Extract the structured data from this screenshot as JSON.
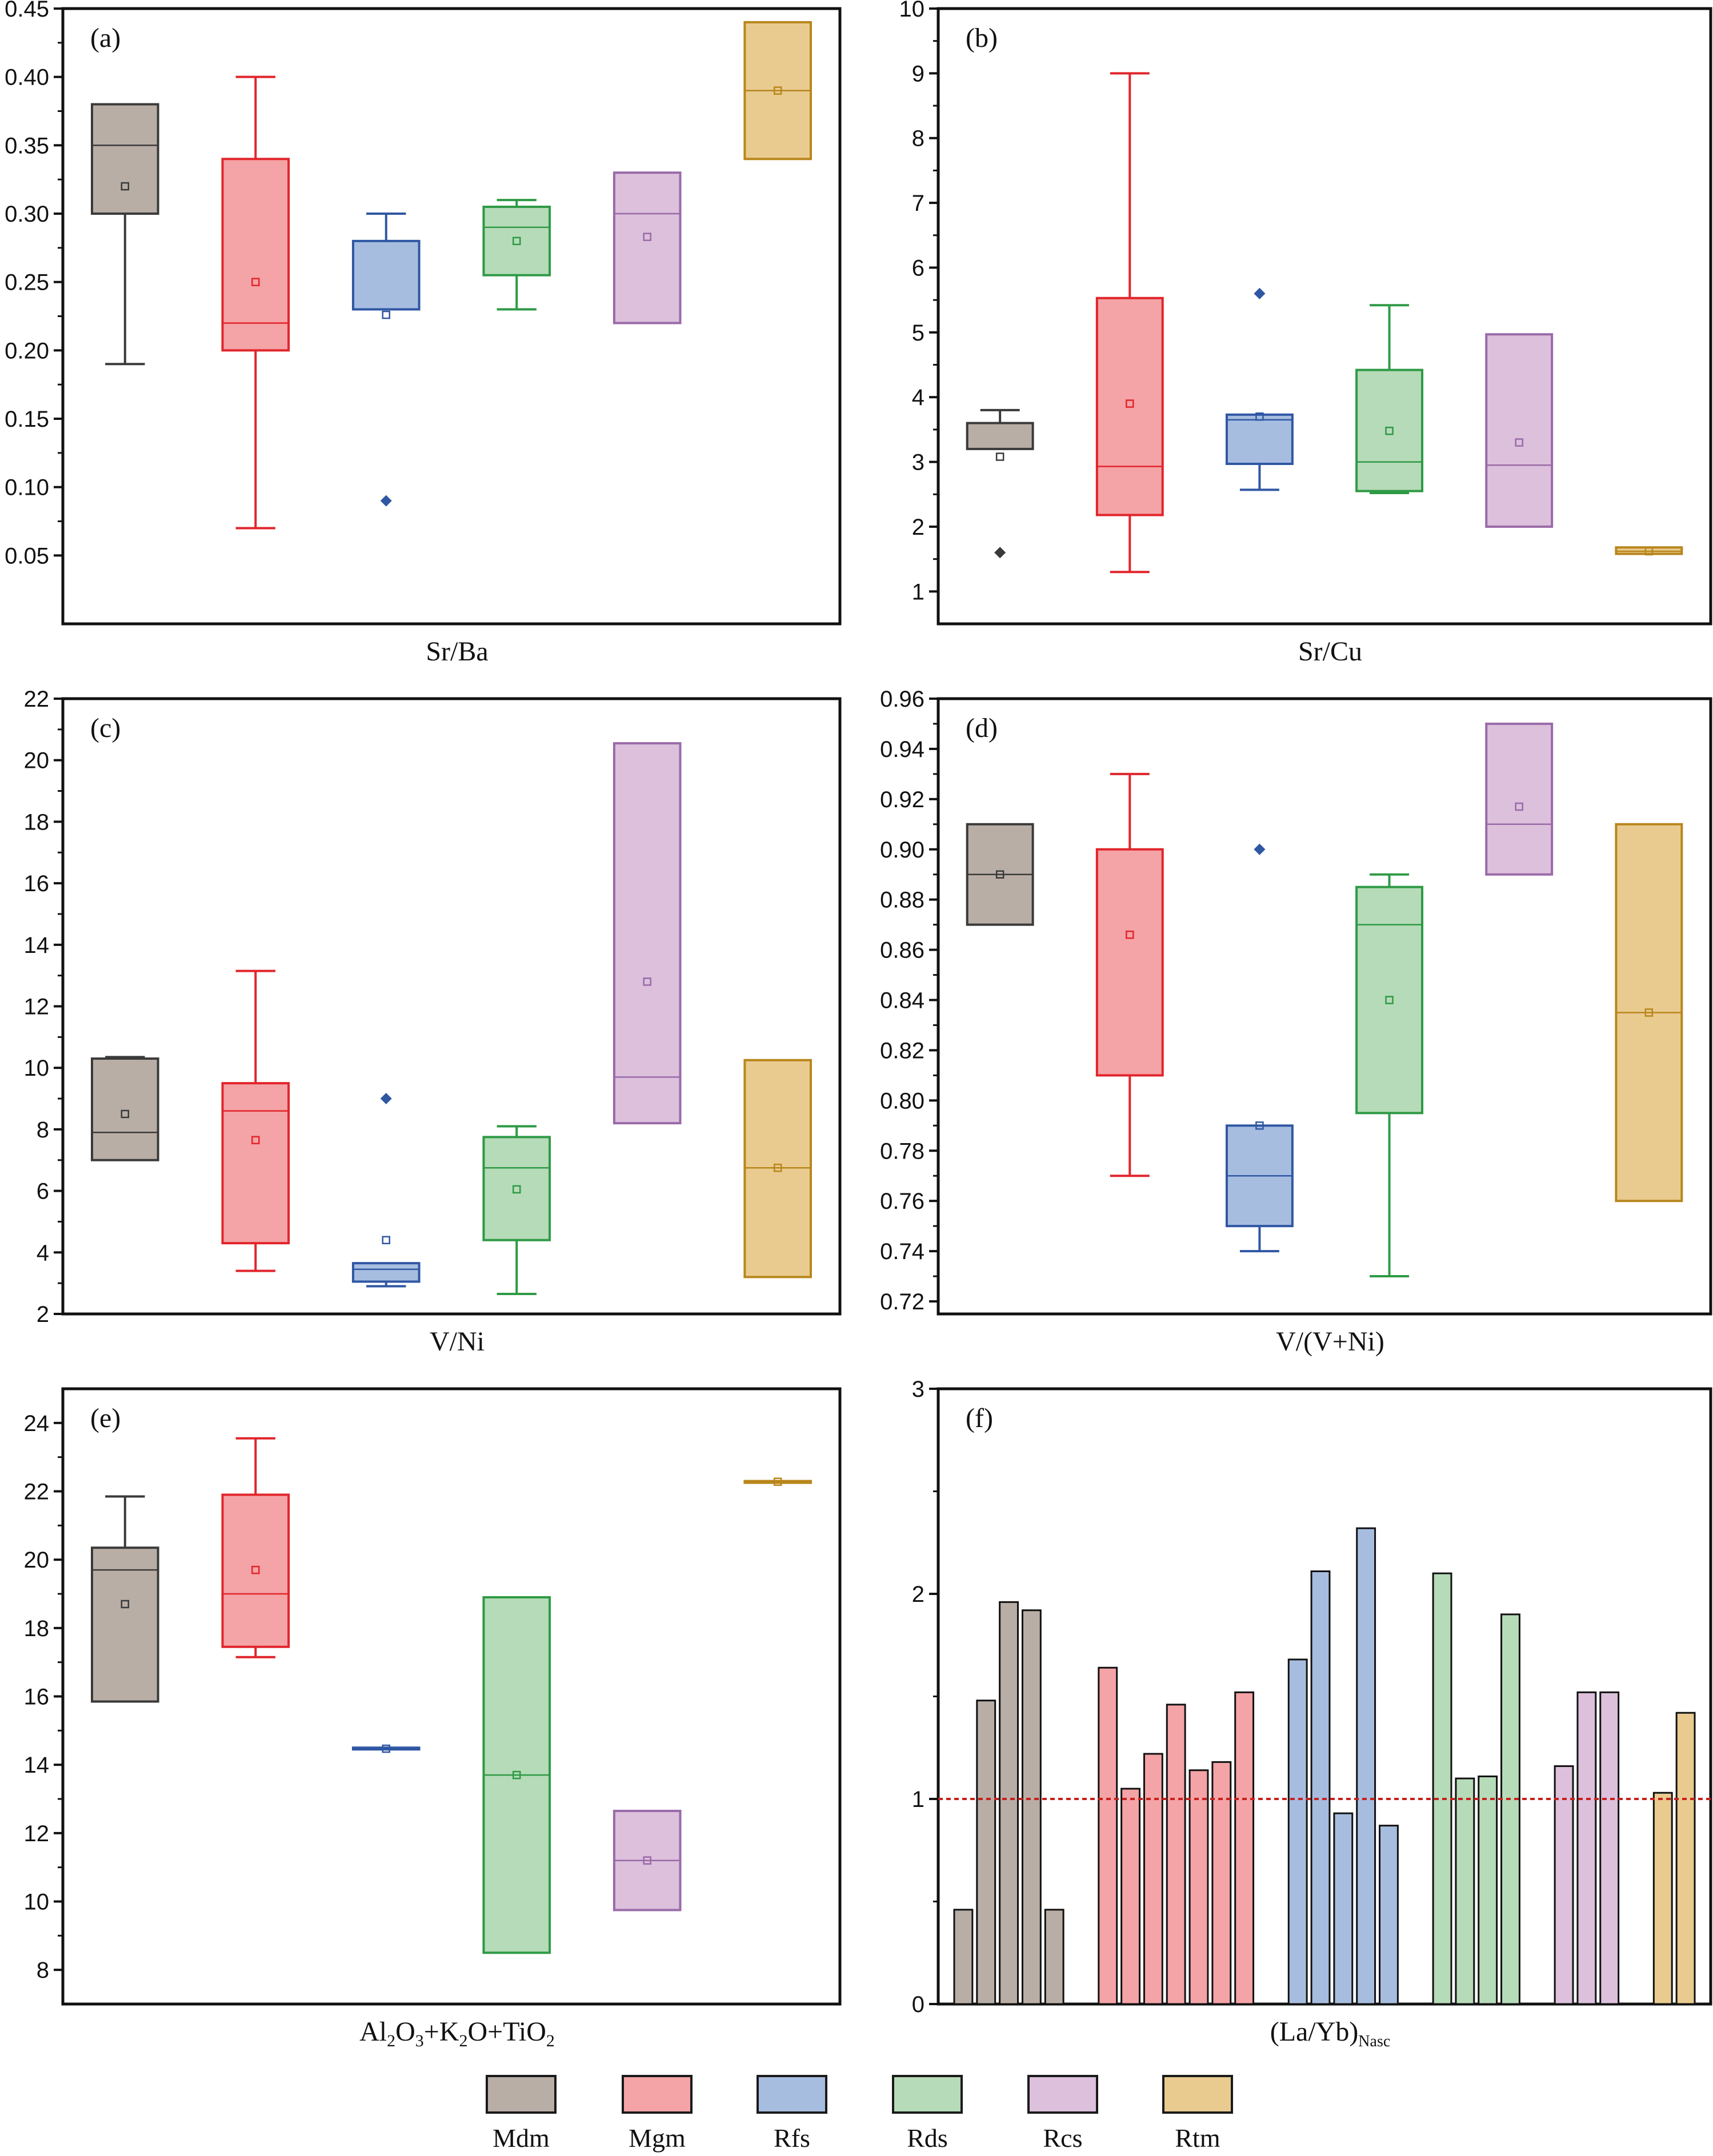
{
  "legend": [
    {
      "label": "Mdm",
      "fill": "#b9aea6",
      "stroke": "#3a3a3a"
    },
    {
      "label": "Mgm",
      "fill": "#f4a3a6",
      "stroke": "#e1252b"
    },
    {
      "label": "Rfs",
      "fill": "#a7bde0",
      "stroke": "#2f57a3"
    },
    {
      "label": "Rds",
      "fill": "#b6dbb8",
      "stroke": "#2e9a45"
    },
    {
      "label": "Rcs",
      "fill": "#dcc0dc",
      "stroke": "#9a6aa8"
    },
    {
      "label": "Rtm",
      "fill": "#e9cb90",
      "stroke": "#b8861b"
    }
  ],
  "chart_data": [
    {
      "panel": "(a)",
      "type": "box",
      "xlabel": "Sr/Ba",
      "ylim": [
        0.0,
        0.45
      ],
      "yticks": [
        0.05,
        0.1,
        0.15,
        0.2,
        0.25,
        0.3,
        0.35,
        0.4,
        0.45
      ],
      "ytick_labels": [
        "0.05",
        "0.10",
        "0.15",
        "0.20",
        "0.25",
        "0.30",
        "0.35",
        "0.40",
        "0.45"
      ],
      "boxes": [
        {
          "group": "Mdm",
          "q1": 0.3,
          "median": 0.35,
          "q3": 0.38,
          "mean": 0.32,
          "whisker_low": 0.19,
          "whisker_high": 0.38,
          "outliers": []
        },
        {
          "group": "Mgm",
          "q1": 0.2,
          "median": 0.22,
          "q3": 0.34,
          "mean": 0.25,
          "whisker_low": 0.07,
          "whisker_high": 0.4,
          "outliers": []
        },
        {
          "group": "Rfs",
          "q1": 0.23,
          "median": 0.23,
          "q3": 0.28,
          "mean": 0.226,
          "whisker_low": 0.23,
          "whisker_high": 0.3,
          "outliers": [
            0.09
          ]
        },
        {
          "group": "Rds",
          "q1": 0.255,
          "median": 0.29,
          "q3": 0.305,
          "mean": 0.28,
          "whisker_low": 0.23,
          "whisker_high": 0.31,
          "outliers": []
        },
        {
          "group": "Rcs",
          "q1": 0.22,
          "median": 0.3,
          "q3": 0.33,
          "mean": 0.283,
          "whisker_low": 0.22,
          "whisker_high": 0.33,
          "outliers": []
        },
        {
          "group": "Rtm",
          "q1": 0.34,
          "median": 0.39,
          "q3": 0.44,
          "mean": 0.39,
          "whisker_low": 0.34,
          "whisker_high": 0.44,
          "outliers": []
        }
      ]
    },
    {
      "panel": "(b)",
      "type": "box",
      "xlabel": "Sr/Cu",
      "ylim": [
        0.5,
        10
      ],
      "yticks": [
        1,
        2,
        3,
        4,
        5,
        6,
        7,
        8,
        9,
        10
      ],
      "ytick_labels": [
        "1",
        "2",
        "3",
        "4",
        "5",
        "6",
        "7",
        "8",
        "9",
        "10"
      ],
      "boxes": [
        {
          "group": "Mdm",
          "q1": 3.2,
          "median": 3.2,
          "q3": 3.6,
          "mean": 3.08,
          "whisker_low": 3.2,
          "whisker_high": 3.8,
          "outliers": [
            1.6
          ]
        },
        {
          "group": "Mgm",
          "q1": 2.18,
          "median": 2.93,
          "q3": 5.53,
          "mean": 3.9,
          "whisker_low": 1.3,
          "whisker_high": 9.0,
          "outliers": []
        },
        {
          "group": "Rfs",
          "q1": 2.97,
          "median": 3.65,
          "q3": 3.73,
          "mean": 3.7,
          "whisker_low": 2.57,
          "whisker_high": 3.73,
          "outliers": [
            5.6
          ]
        },
        {
          "group": "Rds",
          "q1": 2.55,
          "median": 3.0,
          "q3": 4.42,
          "mean": 3.48,
          "whisker_low": 2.52,
          "whisker_high": 5.42,
          "outliers": []
        },
        {
          "group": "Rcs",
          "q1": 2.0,
          "median": 2.95,
          "q3": 4.97,
          "mean": 3.3,
          "whisker_low": 2.0,
          "whisker_high": 4.97,
          "outliers": []
        },
        {
          "group": "Rtm",
          "q1": 1.58,
          "median": 1.62,
          "q3": 1.68,
          "mean": 1.62,
          "whisker_low": 1.58,
          "whisker_high": 1.68,
          "outliers": []
        }
      ]
    },
    {
      "panel": "(c)",
      "type": "box",
      "xlabel": "V/Ni",
      "ylim": [
        2,
        22
      ],
      "yticks": [
        2,
        4,
        6,
        8,
        10,
        12,
        14,
        16,
        18,
        20,
        22
      ],
      "ytick_labels": [
        "2",
        "4",
        "6",
        "8",
        "10",
        "12",
        "14",
        "16",
        "18",
        "20",
        "22"
      ],
      "boxes": [
        {
          "group": "Mdm",
          "q1": 7.0,
          "median": 7.9,
          "q3": 10.3,
          "mean": 8.5,
          "whisker_low": 7.0,
          "whisker_high": 10.35,
          "outliers": []
        },
        {
          "group": "Mgm",
          "q1": 4.3,
          "median": 8.6,
          "q3": 9.5,
          "mean": 7.65,
          "whisker_low": 3.4,
          "whisker_high": 13.15,
          "outliers": []
        },
        {
          "group": "Rfs",
          "q1": 3.05,
          "median": 3.45,
          "q3": 3.65,
          "mean": 4.4,
          "whisker_low": 2.9,
          "whisker_high": 3.65,
          "outliers": [
            9.0
          ]
        },
        {
          "group": "Rds",
          "q1": 4.4,
          "median": 6.75,
          "q3": 7.75,
          "mean": 6.05,
          "whisker_low": 2.65,
          "whisker_high": 8.1,
          "outliers": []
        },
        {
          "group": "Rcs",
          "q1": 8.2,
          "median": 9.7,
          "q3": 20.55,
          "mean": 12.8,
          "whisker_low": 8.2,
          "whisker_high": 20.55,
          "outliers": []
        },
        {
          "group": "Rtm",
          "q1": 3.2,
          "median": 6.75,
          "q3": 10.25,
          "mean": 6.75,
          "whisker_low": 3.2,
          "whisker_high": 10.25,
          "outliers": []
        }
      ]
    },
    {
      "panel": "(d)",
      "type": "box",
      "xlabel": "V/(V+Ni)",
      "ylim": [
        0.715,
        0.96
      ],
      "yticks": [
        0.72,
        0.74,
        0.76,
        0.78,
        0.8,
        0.82,
        0.84,
        0.86,
        0.88,
        0.9,
        0.92,
        0.94,
        0.96
      ],
      "ytick_labels": [
        "0.72",
        "0.74",
        "0.76",
        "0.78",
        "0.80",
        "0.82",
        "0.84",
        "0.86",
        "0.88",
        "0.90",
        "0.92",
        "0.94",
        "0.96"
      ],
      "boxes": [
        {
          "group": "Mdm",
          "q1": 0.87,
          "median": 0.89,
          "q3": 0.91,
          "mean": 0.89,
          "whisker_low": 0.87,
          "whisker_high": 0.91,
          "outliers": []
        },
        {
          "group": "Mgm",
          "q1": 0.81,
          "median": 0.9,
          "q3": 0.9,
          "mean": 0.866,
          "whisker_low": 0.77,
          "whisker_high": 0.93,
          "outliers": []
        },
        {
          "group": "Rfs",
          "q1": 0.75,
          "median": 0.77,
          "q3": 0.79,
          "mean": 0.79,
          "whisker_low": 0.74,
          "whisker_high": 0.79,
          "outliers": [
            0.9
          ]
        },
        {
          "group": "Rds",
          "q1": 0.795,
          "median": 0.87,
          "q3": 0.885,
          "mean": 0.84,
          "whisker_low": 0.73,
          "whisker_high": 0.89,
          "outliers": []
        },
        {
          "group": "Rcs",
          "q1": 0.89,
          "median": 0.91,
          "q3": 0.95,
          "mean": 0.917,
          "whisker_low": 0.89,
          "whisker_high": 0.95,
          "outliers": []
        },
        {
          "group": "Rtm",
          "q1": 0.76,
          "median": 0.835,
          "q3": 0.91,
          "mean": 0.835,
          "whisker_low": 0.76,
          "whisker_high": 0.91,
          "outliers": []
        }
      ]
    },
    {
      "panel": "(e)",
      "type": "box",
      "xlabel": "Al₂O₃+K₂O+TiO₂",
      "xlabel_parts": {
        "a1": "Al",
        "a2": "2",
        "a3": "O",
        "a4": "3",
        "a5": "+K",
        "a6": "2",
        "a7": "O+TiO",
        "a8": "2"
      },
      "ylim": [
        7,
        25
      ],
      "yticks": [
        8,
        10,
        12,
        14,
        16,
        18,
        20,
        22,
        24
      ],
      "ytick_labels": [
        "8",
        "10",
        "12",
        "14",
        "16",
        "18",
        "20",
        "22",
        "24"
      ],
      "boxes": [
        {
          "group": "Mdm",
          "q1": 15.85,
          "median": 19.7,
          "q3": 20.35,
          "mean": 18.7,
          "whisker_low": 15.85,
          "whisker_high": 21.85,
          "outliers": []
        },
        {
          "group": "Mgm",
          "q1": 17.45,
          "median": 19.0,
          "q3": 21.9,
          "mean": 19.7,
          "whisker_low": 17.15,
          "whisker_high": 23.55,
          "outliers": []
        },
        {
          "group": "Rfs",
          "q1": 14.45,
          "median": 14.45,
          "q3": 14.5,
          "mean": 14.47,
          "whisker_low": 14.45,
          "whisker_high": 14.5,
          "outliers": []
        },
        {
          "group": "Rds",
          "q1": 8.5,
          "median": 13.7,
          "q3": 18.9,
          "mean": 13.7,
          "whisker_low": 8.5,
          "whisker_high": 18.9,
          "outliers": []
        },
        {
          "group": "Rcs",
          "q1": 9.75,
          "median": 11.2,
          "q3": 12.65,
          "mean": 11.2,
          "whisker_low": 9.75,
          "whisker_high": 12.65,
          "outliers": []
        },
        {
          "group": "Rtm",
          "q1": 22.25,
          "median": 22.28,
          "q3": 22.3,
          "mean": 22.28,
          "whisker_low": 22.25,
          "whisker_high": 22.3,
          "outliers": []
        }
      ]
    },
    {
      "panel": "(f)",
      "type": "bar",
      "xlabel": "(La/Yb)",
      "xlabel_sub": "Nasc",
      "ylim": [
        0,
        3
      ],
      "yticks": [
        0,
        1,
        2,
        3
      ],
      "ytick_labels": [
        "0",
        "1",
        "2",
        "3"
      ],
      "reference_line": 1.0,
      "groups": [
        {
          "group": "Mdm",
          "values": [
            0.46,
            1.48,
            1.96,
            1.92,
            0.46
          ]
        },
        {
          "group": "Mgm",
          "values": [
            1.64,
            1.05,
            1.22,
            1.46,
            1.14,
            1.18,
            1.52
          ]
        },
        {
          "group": "Rfs",
          "values": [
            1.68,
            2.11,
            0.93,
            2.32,
            0.87
          ]
        },
        {
          "group": "Rds",
          "values": [
            2.1,
            1.1,
            1.11,
            1.9
          ]
        },
        {
          "group": "Rcs",
          "values": [
            1.16,
            1.52,
            1.52
          ]
        },
        {
          "group": "Rtm",
          "values": [
            1.03,
            1.42
          ]
        }
      ]
    }
  ]
}
